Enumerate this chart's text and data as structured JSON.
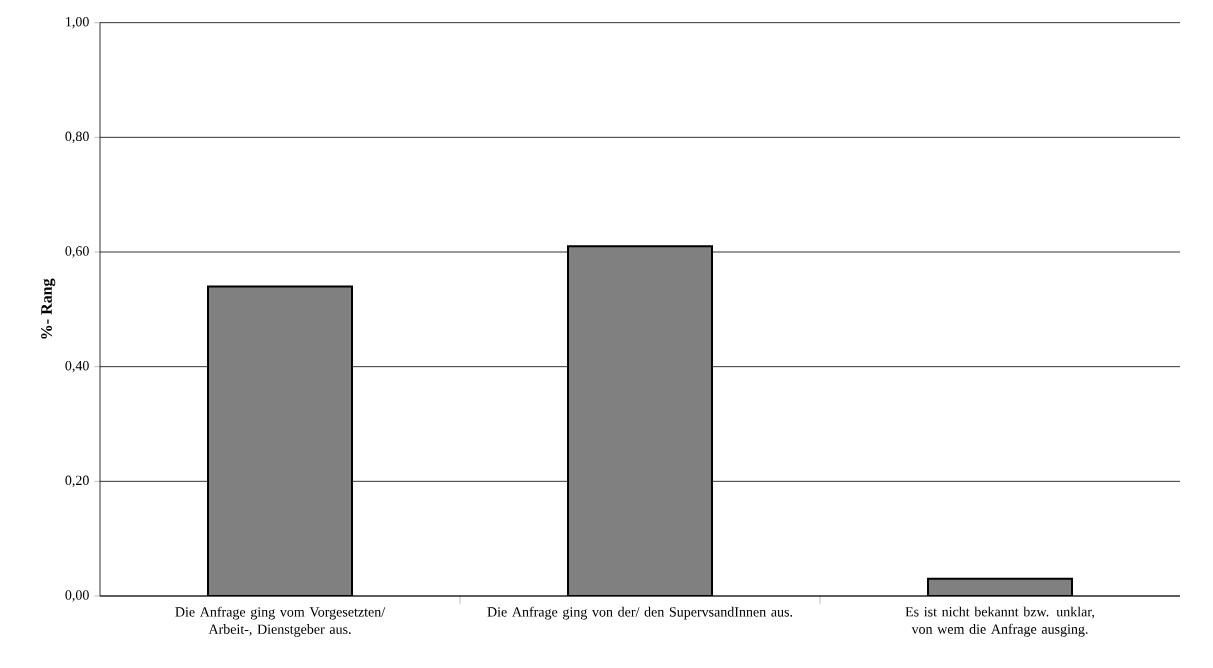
{
  "chart_data": {
    "type": "bar",
    "ylabel": "%- Rang",
    "categories": [
      "Die Anfrage ging vom Vorgesetzten/ Arbeit-, Dienstgeber aus.",
      "Die Anfrage ging von der/ den SupervsandInnen aus.",
      "Es ist nicht bekannt bzw. unklar, von wem die Anfrage ausging."
    ],
    "values": [
      0.54,
      0.61,
      0.03
    ],
    "color": "#808080",
    "ylim": [
      0,
      1
    ],
    "yticks": [
      {
        "value": 0,
        "label": "0,00"
      },
      {
        "value": 0.2,
        "label": "0,20"
      },
      {
        "value": 0.4,
        "label": "0,40"
      },
      {
        "value": 0.6,
        "label": "0,60"
      },
      {
        "value": 0.8,
        "label": "0,80"
      },
      {
        "value": 1,
        "label": "1,00"
      }
    ],
    "grid": "y"
  }
}
